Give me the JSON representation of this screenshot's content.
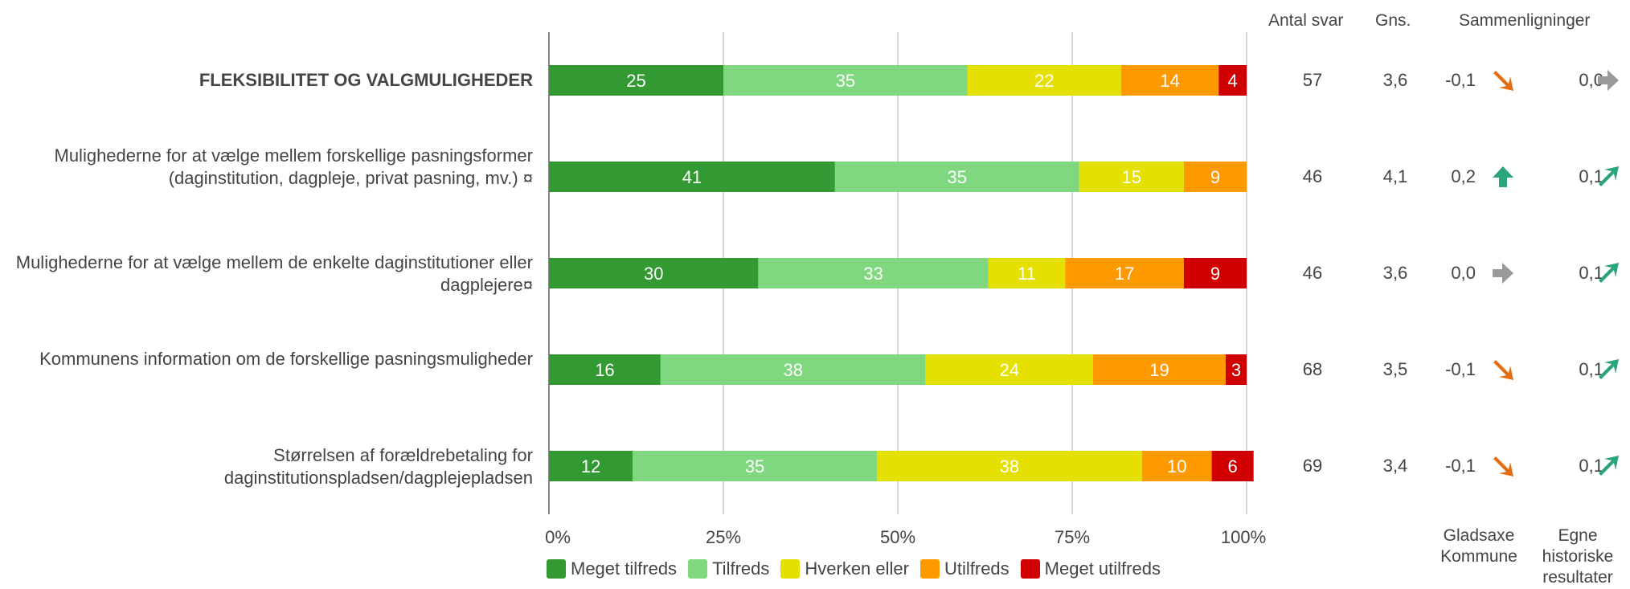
{
  "headers": {
    "antal_svar": "Antal svar",
    "gns": "Gns.",
    "sammenligninger": "Sammenligninger"
  },
  "colors": {
    "meget_tilfreds": "#339933",
    "tilfreds": "#7fd87f",
    "hverken_eller": "#e5e000",
    "utilfreds": "#ff9900",
    "meget_utilfreds": "#d00000",
    "arrow_down": "#e46d14",
    "arrow_up": "#2aa57a",
    "arrow_flat": "#9a9a9a",
    "gridline": "#b0b0b0"
  },
  "rows": [
    {
      "label": "FLEKSIBILITET OG VALGMULIGHEDER",
      "bold": true,
      "antal": "57",
      "gns": "3,6",
      "cmp1": "-0,1",
      "cmp1_dir": "down",
      "cmp2": "0,0",
      "cmp2_dir": "flat"
    },
    {
      "label": "Mulighederne for at vælge mellem forskellige pasningsformer (daginstitution, dagpleje, privat pasning, mv.) ¤",
      "bold": false,
      "antal": "46",
      "gns": "4,1",
      "cmp1": "0,2",
      "cmp1_dir": "upbig",
      "cmp2": "0,1",
      "cmp2_dir": "up"
    },
    {
      "label": "Mulighederne for at vælge mellem de enkelte daginstitutioner eller dagplejere¤",
      "bold": false,
      "antal": "46",
      "gns": "3,6",
      "cmp1": "0,0",
      "cmp1_dir": "flat",
      "cmp2": "0,1",
      "cmp2_dir": "up"
    },
    {
      "label": "Kommunens information om de forskellige pasningsmuligheder",
      "bold": false,
      "antal": "68",
      "gns": "3,5",
      "cmp1": "-0,1",
      "cmp1_dir": "down",
      "cmp2": "0,1",
      "cmp2_dir": "up"
    },
    {
      "label": "Størrelsen af forældrebetaling for daginstitutionspladsen/dagplejepladsen",
      "bold": false,
      "antal": "69",
      "gns": "3,4",
      "cmp1": "-0,1",
      "cmp1_dir": "down",
      "cmp2": "0,1",
      "cmp2_dir": "up"
    }
  ],
  "footer": {
    "cmp1_label": "Gladsaxe Kommune",
    "cmp2_label": "Egne historiske resultater"
  },
  "chart_data": {
    "type": "bar",
    "orientation": "horizontal",
    "stacked": true,
    "categories": [
      "FLEKSIBILITET OG VALGMULIGHEDER",
      "Mulighederne for at vælge mellem forskellige pasningsformer (daginstitution, dagpleje, privat pasning, mv.) ¤",
      "Mulighederne for at vælge mellem de enkelte daginstitutioner eller dagplejere¤",
      "Kommunens information om de forskellige pasningsmuligheder",
      "Størrelsen af forældrebetaling for daginstitutionspladsen/dagplejepladsen"
    ],
    "series": [
      {
        "name": "Meget tilfreds",
        "values": [
          25,
          41,
          30,
          16,
          12
        ]
      },
      {
        "name": "Tilfreds",
        "values": [
          35,
          35,
          33,
          38,
          35
        ]
      },
      {
        "name": "Hverken eller",
        "values": [
          22,
          15,
          11,
          24,
          38
        ]
      },
      {
        "name": "Utilfreds",
        "values": [
          14,
          9,
          17,
          19,
          10
        ]
      },
      {
        "name": "Meget utilfreds",
        "values": [
          4,
          0,
          9,
          3,
          6
        ]
      }
    ],
    "xlim": [
      0,
      100
    ],
    "xticks": [
      "0%",
      "25%",
      "50%",
      "75%",
      "100%"
    ],
    "grid": true,
    "legend_position": "bottom"
  }
}
